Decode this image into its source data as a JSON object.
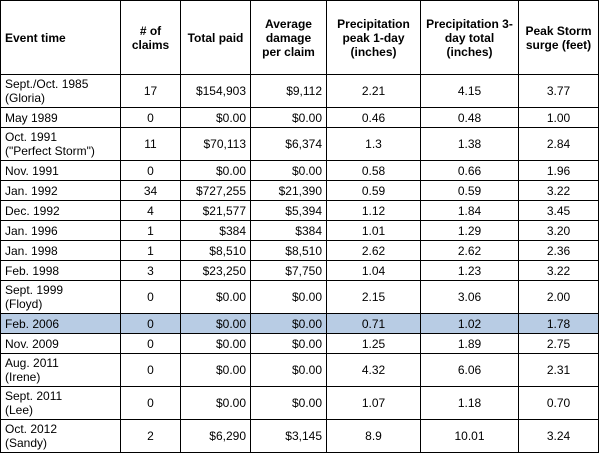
{
  "headers": [
    "Event time",
    "# of claims",
    "Total paid",
    "Average damage per claim",
    "Precipitation peak 1-day (inches)",
    "Precipitation 3-day total (inches)",
    "Peak Storm surge (feet)"
  ],
  "rows": [
    {
      "event": "Sept./Oct. 1985",
      "event2": "(Gloria)",
      "claims": "17",
      "total": "$154,903",
      "avg": "$9,112",
      "p1": "2.21",
      "p3": "4.15",
      "surge": "3.77"
    },
    {
      "event": "May 1989",
      "claims": "0",
      "total": "$0.00",
      "avg": "$0.00",
      "p1": "0.46",
      "p3": "0.48",
      "surge": "1.00"
    },
    {
      "event": "Oct. 1991",
      "event2": "(\"Perfect Storm\")",
      "claims": "11",
      "total": "$70,113",
      "avg": "$6,374",
      "p1": "1.3",
      "p3": "1.38",
      "surge": "2.84"
    },
    {
      "event": "Nov. 1991",
      "claims": "0",
      "total": "$0.00",
      "avg": "$0.00",
      "p1": "0.58",
      "p3": "0.66",
      "surge": "1.96"
    },
    {
      "event": "Jan. 1992",
      "claims": "34",
      "total": "$727,255",
      "avg": "$21,390",
      "p1": "0.59",
      "p3": "0.59",
      "surge": "3.22"
    },
    {
      "event": "Dec. 1992",
      "claims": "4",
      "total": "$21,577",
      "avg": "$5,394",
      "p1": "1.12",
      "p3": "1.84",
      "surge": "3.45"
    },
    {
      "event": "Jan. 1996",
      "claims": "1",
      "total": "$384",
      "avg": "$384",
      "p1": "1.01",
      "p3": "1.29",
      "surge": "3.20"
    },
    {
      "event": "Jan. 1998",
      "claims": "1",
      "total": "$8,510",
      "avg": "$8,510",
      "p1": "2.62",
      "p3": "2.62",
      "surge": "2.36"
    },
    {
      "event": "Feb. 1998",
      "claims": "3",
      "total": "$23,250",
      "avg": "$7,750",
      "p1": "1.04",
      "p3": "1.23",
      "surge": "3.22"
    },
    {
      "event": "Sept. 1999",
      "event2": "(Floyd)",
      "claims": "0",
      "total": "$0.00",
      "avg": "$0.00",
      "p1": "2.15",
      "p3": "3.06",
      "surge": "2.00"
    },
    {
      "event": "Feb. 2006",
      "claims": "0",
      "total": "$0.00",
      "avg": "$0.00",
      "p1": "0.71",
      "p3": "1.02",
      "surge": "1.78",
      "highlight": true
    },
    {
      "event": "Nov. 2009",
      "claims": "0",
      "total": "$0.00",
      "avg": "$0.00",
      "p1": "1.25",
      "p3": "1.89",
      "surge": "2.75"
    },
    {
      "event": "Aug. 2011",
      "event2": "(Irene)",
      "claims": "0",
      "total": "$0.00",
      "avg": "$0.00",
      "p1": "4.32",
      "p3": "6.06",
      "surge": "2.31"
    },
    {
      "event": "Sept. 2011",
      "event2": "(Lee)",
      "claims": "0",
      "total": "$0.00",
      "avg": "$0.00",
      "p1": "1.07",
      "p3": "1.18",
      "surge": "0.70"
    },
    {
      "event": "Oct. 2012",
      "event2": "(Sandy)",
      "claims": "2",
      "total": "$6,290",
      "avg": "$3,145",
      "p1": "8.9",
      "p3": "10.01",
      "surge": "3.24"
    }
  ],
  "colors": {
    "highlight_row": "#b8cce4",
    "border": "#000000"
  }
}
